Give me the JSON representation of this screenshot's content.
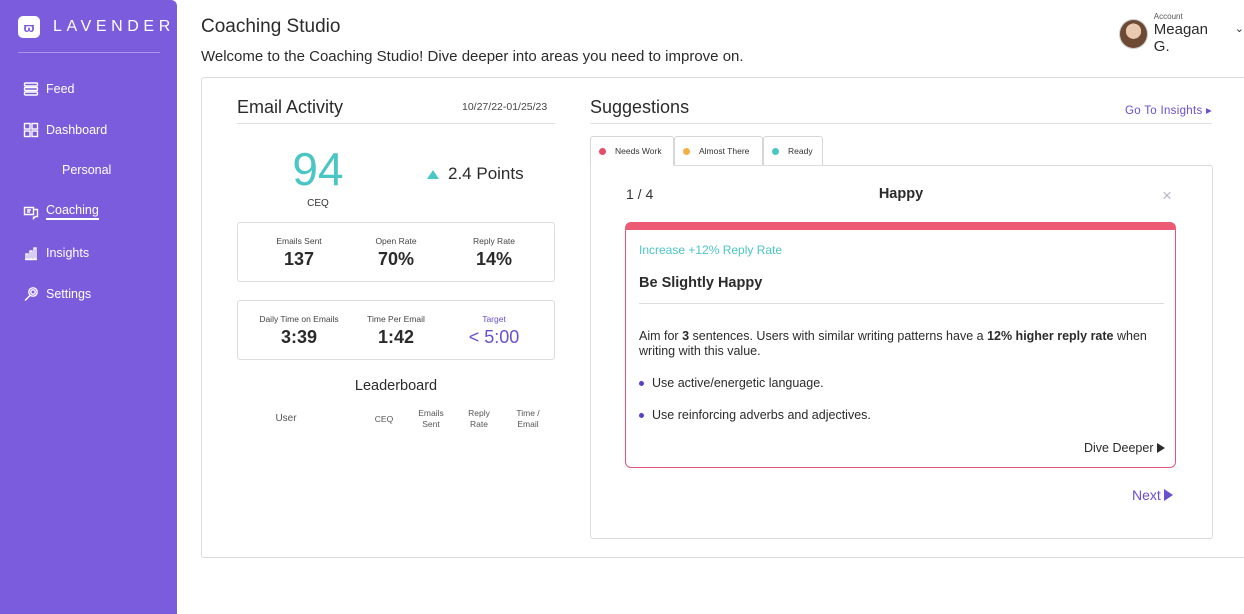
{
  "brand": {
    "name": "LAVENDER",
    "badge": "ϖ"
  },
  "sidebar": {
    "items": [
      {
        "label": "Feed",
        "icon": "feed-icon"
      },
      {
        "label": "Dashboard",
        "icon": "dashboard-icon"
      },
      {
        "label": "Personal"
      },
      {
        "label": "Coaching",
        "icon": "coaching-icon",
        "active": true
      },
      {
        "label": "Insights",
        "icon": "insights-icon"
      },
      {
        "label": "Settings",
        "icon": "settings-icon"
      }
    ]
  },
  "header": {
    "title": "Coaching Studio",
    "subtitle": "Welcome to the Coaching Studio! Dive deeper into areas you need to improve on."
  },
  "account": {
    "label": "Account",
    "name": "Meagan G."
  },
  "email_activity": {
    "title": "Email Activity",
    "date_range": "10/27/22-01/25/23",
    "ceq_value": "94",
    "ceq_label": "CEQ",
    "points": "2.4 Points",
    "stats_row1": [
      {
        "label": "Emails Sent",
        "value": "137"
      },
      {
        "label": "Open Rate",
        "value": "70%"
      },
      {
        "label": "Reply Rate",
        "value": "14%"
      }
    ],
    "stats_row2": [
      {
        "label": "Daily Time on Emails",
        "value": "3:39"
      },
      {
        "label": "Time Per Email",
        "value": "1:42"
      },
      {
        "label": "Target",
        "value": "< 5:00"
      }
    ]
  },
  "leaderboard": {
    "title": "Leaderboard",
    "columns": [
      "User",
      "CEQ",
      "Emails\nSent",
      "Reply\nRate",
      "Time /\nEmail"
    ]
  },
  "suggestions": {
    "title": "Suggestions",
    "link": "Go To Insights ▸",
    "tabs": [
      {
        "label": "Needs Work",
        "color": "#e94b67"
      },
      {
        "label": "Almost There",
        "color": "#f2b045"
      },
      {
        "label": "Ready",
        "color": "#4ac6c4"
      }
    ],
    "counter": "1 / 4",
    "card_name": "Happy",
    "close": "×",
    "card": {
      "increase": "Increase +12% Reply Rate",
      "title": "Be Slightly Happy",
      "body_pre": "Aim for ",
      "body_bold1": "3",
      "body_mid": " sentences. Users with similar writing patterns have a ",
      "body_bold2": "12% higher reply rate",
      "body_post": " when writing with this value.",
      "bullets": [
        "Use active/energetic language.",
        "Use reinforcing adverbs and adjectives."
      ],
      "dive": "Dive Deeper"
    },
    "next": "Next"
  }
}
